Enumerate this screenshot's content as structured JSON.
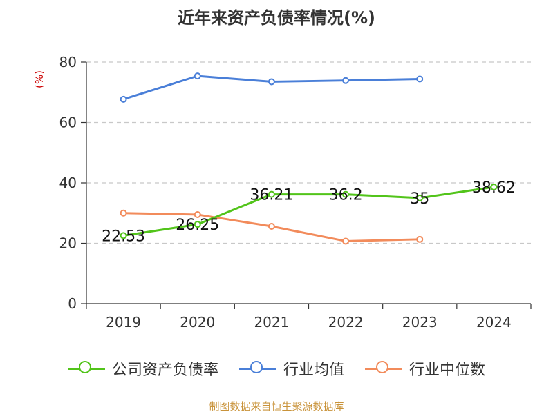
{
  "chart_data": {
    "type": "line",
    "title": "近年来资产负债率情况(%)",
    "ylabel": "(%)",
    "categories": [
      "2019",
      "2020",
      "2021",
      "2022",
      "2023",
      "2024"
    ],
    "yticks": [
      "0",
      "20",
      "40",
      "60",
      "80"
    ],
    "ylim": [
      0,
      80
    ],
    "grid": true,
    "legend_placement": "bottom",
    "series": [
      {
        "name": "公司资产负债率",
        "color": "#52c41a",
        "values": [
          22.53,
          26.25,
          36.21,
          36.2,
          35,
          38.62
        ],
        "labels": [
          "22.53",
          "26.25",
          "36.21",
          "36.2",
          "35",
          "38.62"
        ]
      },
      {
        "name": "行业均值",
        "color": "#4a7fd8",
        "values": [
          67.7,
          75.4,
          73.5,
          73.9,
          74.4,
          null
        ]
      },
      {
        "name": "行业中位数",
        "color": "#f28b5b",
        "values": [
          30.0,
          29.5,
          25.6,
          20.7,
          21.3,
          null
        ]
      }
    ]
  },
  "source": "制图数据来自恒生聚源数据库"
}
